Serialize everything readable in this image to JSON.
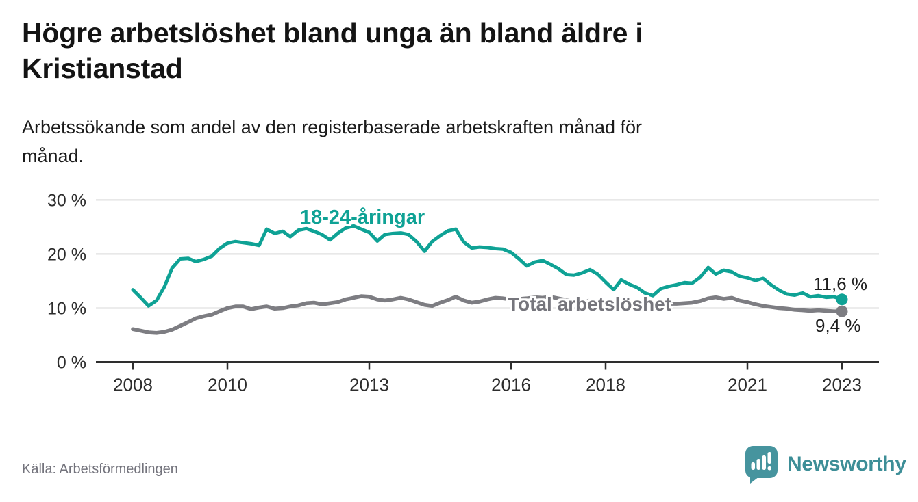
{
  "header": {
    "title_line1": "Högre arbetslöshet bland unga än bland äldre i",
    "title_line2": "Kristianstad",
    "subtitle_line1": "Arbetssökande som andel av den registerbaserade arbetskraften månad för",
    "subtitle_line2": "månad."
  },
  "footer": {
    "source": "Källa: Arbetsförmedlingen",
    "brand_name": "Newsworthy",
    "brand_color": "#3d8e97"
  },
  "chart_data": {
    "type": "line",
    "title": "Högre arbetslöshet bland unga än bland äldre i Kristianstad",
    "subtitle": "Arbetssökande som andel av den registerbaserade arbetskraften månad för månad.",
    "source": "Källa: Arbetsförmedlingen",
    "grid": true,
    "legend_position": "inline",
    "ylim": [
      0,
      30
    ],
    "xlim": [
      2007.2,
      2023.8
    ],
    "y_ticks": [
      {
        "v": 0,
        "label": "0 %"
      },
      {
        "v": 10,
        "label": "10 %"
      },
      {
        "v": 20,
        "label": "20 %"
      },
      {
        "v": 30,
        "label": "30 %"
      }
    ],
    "x_ticks": [
      {
        "v": 2008,
        "label": "2008"
      },
      {
        "v": 2010,
        "label": "2010"
      },
      {
        "v": 2013,
        "label": "2013"
      },
      {
        "v": 2016,
        "label": "2016"
      },
      {
        "v": 2018,
        "label": "2018"
      },
      {
        "v": 2021,
        "label": "2021"
      },
      {
        "v": 2023,
        "label": "2023"
      }
    ],
    "x": [
      2008,
      2008.17,
      2008.33,
      2008.5,
      2008.67,
      2008.83,
      2009,
      2009.17,
      2009.33,
      2009.5,
      2009.67,
      2009.83,
      2010,
      2010.17,
      2010.33,
      2010.5,
      2010.67,
      2010.83,
      2011,
      2011.17,
      2011.33,
      2011.5,
      2011.67,
      2011.83,
      2012,
      2012.17,
      2012.33,
      2012.5,
      2012.67,
      2012.83,
      2013,
      2013.17,
      2013.33,
      2013.5,
      2013.67,
      2013.83,
      2014,
      2014.17,
      2014.33,
      2014.5,
      2014.67,
      2014.83,
      2015,
      2015.17,
      2015.33,
      2015.5,
      2015.67,
      2015.83,
      2016,
      2016.17,
      2016.33,
      2016.5,
      2016.67,
      2016.83,
      2017,
      2017.17,
      2017.33,
      2017.5,
      2017.67,
      2017.83,
      2018,
      2018.17,
      2018.33,
      2018.5,
      2018.67,
      2018.83,
      2019,
      2019.17,
      2019.33,
      2019.5,
      2019.67,
      2019.83,
      2020,
      2020.17,
      2020.33,
      2020.5,
      2020.67,
      2020.83,
      2021,
      2021.17,
      2021.33,
      2021.5,
      2021.67,
      2021.83,
      2022,
      2022.17,
      2022.33,
      2022.5,
      2022.67,
      2022.83,
      2023
    ],
    "series": [
      {
        "name": "18-24-åringar",
        "color": "#0fa295",
        "end_label": "11,6 %",
        "end_value": 11.6,
        "values": [
          13.4,
          11.9,
          10.4,
          11.4,
          14.0,
          17.4,
          19.1,
          19.2,
          18.6,
          19.0,
          19.6,
          21.0,
          22.0,
          22.3,
          22.1,
          21.9,
          21.6,
          24.6,
          23.8,
          24.2,
          23.2,
          24.4,
          24.7,
          24.2,
          23.6,
          22.6,
          23.8,
          24.8,
          25.2,
          24.6,
          24.0,
          22.4,
          23.6,
          23.8,
          23.9,
          23.6,
          22.3,
          20.5,
          22.3,
          23.4,
          24.3,
          24.6,
          22.2,
          21.1,
          21.3,
          21.2,
          21.0,
          20.9,
          20.3,
          19.1,
          17.8,
          18.5,
          18.8,
          18.1,
          17.3,
          16.2,
          16.1,
          16.5,
          17.1,
          16.3,
          14.8,
          13.4,
          15.2,
          14.4,
          13.8,
          12.8,
          12.3,
          13.6,
          14.0,
          14.3,
          14.7,
          14.6,
          15.7,
          17.5,
          16.3,
          17.0,
          16.7,
          15.9,
          15.6,
          15.1,
          15.5,
          14.3,
          13.3,
          12.6,
          12.4,
          12.8,
          12.1,
          12.3,
          12.0,
          12.1,
          11.6
        ]
      },
      {
        "name": "Total arbetslöshet",
        "color": "#7d7d82",
        "end_label": "9,4 %",
        "end_value": 9.4,
        "values": [
          6.1,
          5.8,
          5.5,
          5.4,
          5.6,
          6.0,
          6.7,
          7.4,
          8.1,
          8.5,
          8.8,
          9.4,
          10.0,
          10.3,
          10.3,
          9.8,
          10.1,
          10.3,
          9.9,
          10.0,
          10.3,
          10.5,
          10.9,
          11.0,
          10.7,
          10.9,
          11.1,
          11.6,
          11.9,
          12.2,
          12.1,
          11.6,
          11.4,
          11.6,
          11.9,
          11.6,
          11.1,
          10.6,
          10.4,
          11.0,
          11.5,
          12.1,
          11.4,
          11.0,
          11.2,
          11.6,
          11.9,
          11.8,
          11.6,
          11.7,
          11.8,
          12.0,
          11.9,
          12.1,
          11.8,
          11.5,
          11.3,
          11.2,
          11.4,
          11.2,
          10.9,
          10.6,
          10.5,
          10.6,
          10.7,
          10.5,
          10.6,
          10.7,
          10.8,
          10.8,
          10.9,
          11.0,
          11.3,
          11.8,
          12.0,
          11.7,
          11.9,
          11.4,
          11.1,
          10.7,
          10.4,
          10.2,
          10.0,
          9.9,
          9.7,
          9.6,
          9.5,
          9.6,
          9.5,
          9.4,
          9.4
        ]
      }
    ]
  }
}
